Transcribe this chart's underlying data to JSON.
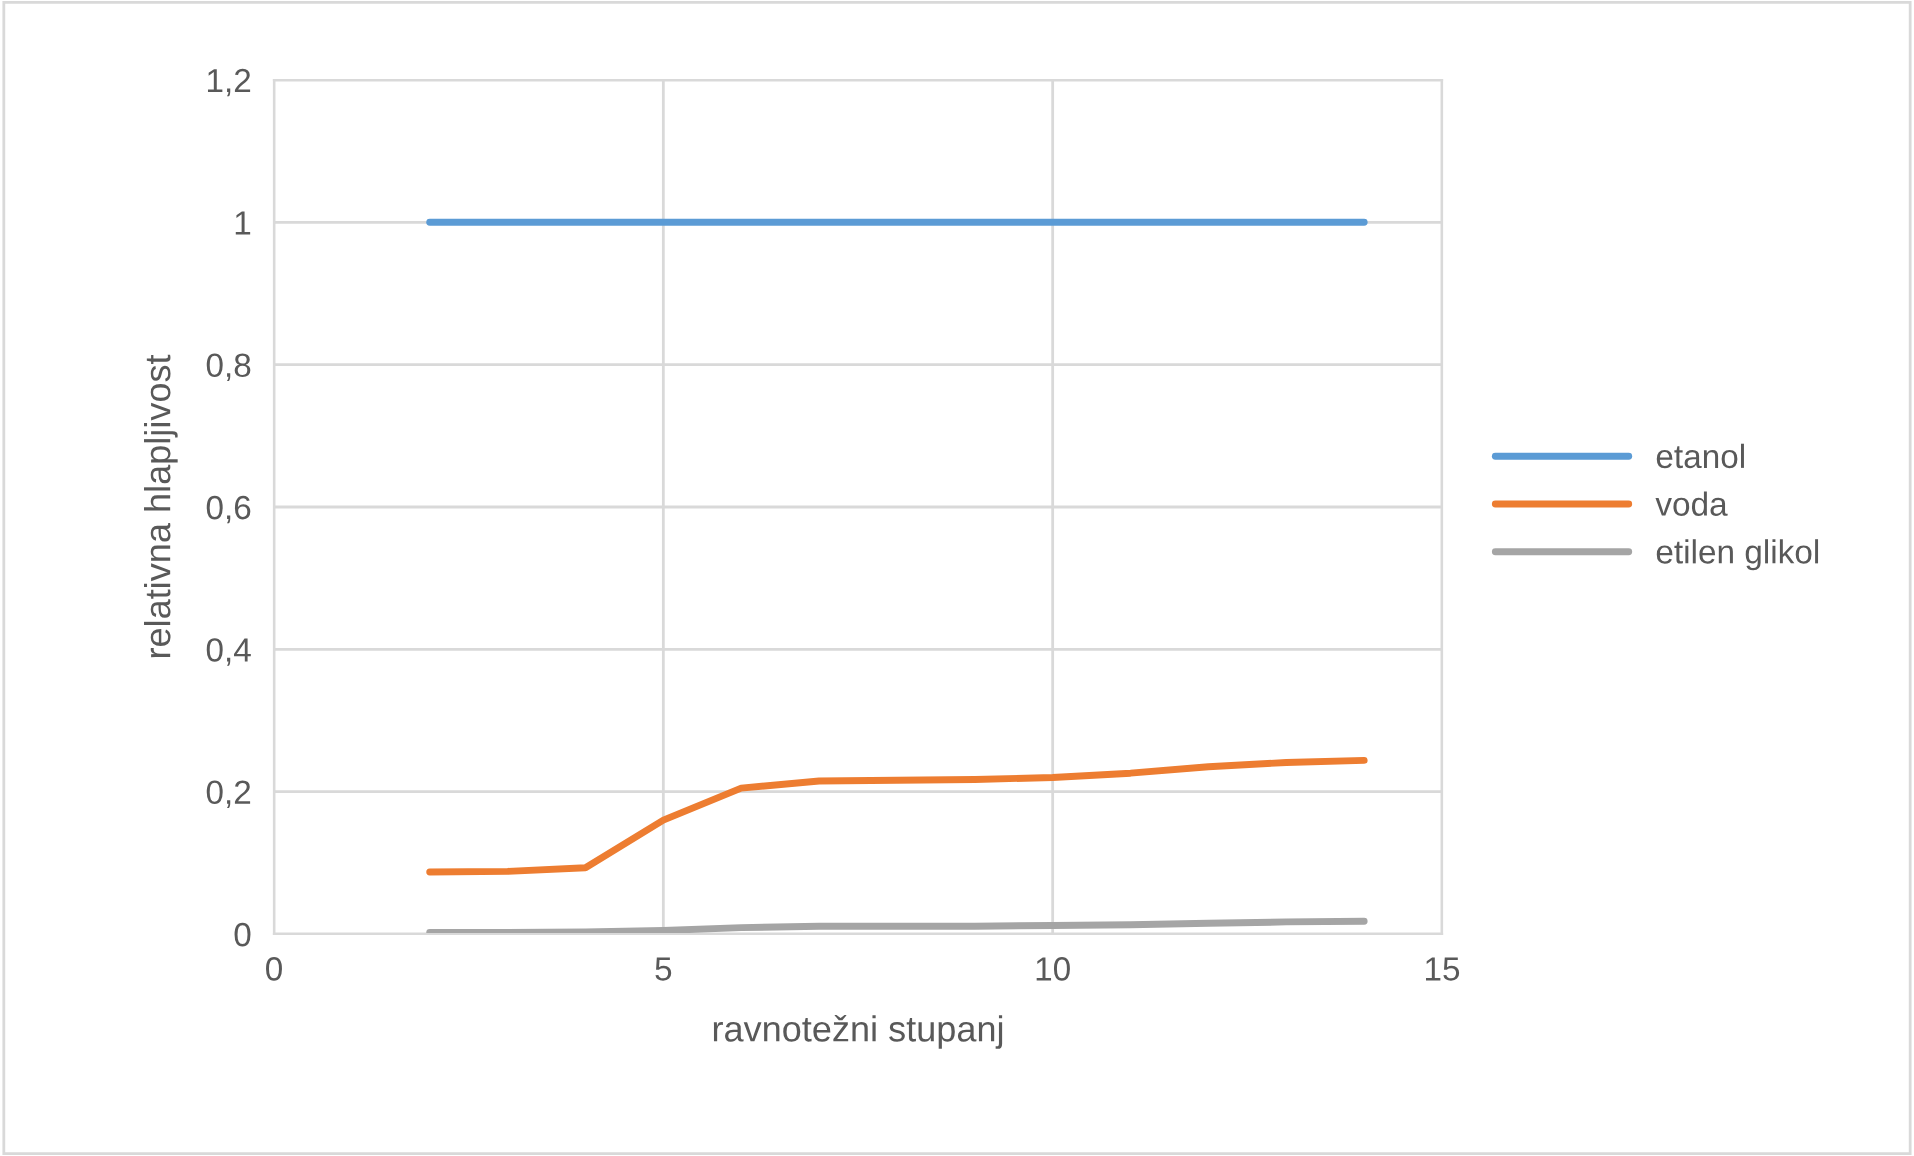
{
  "chart_data": {
    "type": "line",
    "xlabel": "ravnotežni stupanj",
    "ylabel": "relativna hlapljivost",
    "x": [
      2,
      3,
      4,
      5,
      6,
      7,
      8,
      9,
      10,
      11,
      12,
      13,
      14
    ],
    "series": [
      {
        "name": "etanol",
        "color": "#5b9bd5",
        "values": [
          1,
          1,
          1,
          1,
          1,
          1,
          1,
          1,
          1,
          1,
          1,
          1,
          1
        ]
      },
      {
        "name": "voda",
        "color": "#ed7d31",
        "values": [
          0.087,
          0.088,
          0.093,
          0.16,
          0.205,
          0.215,
          0.216,
          0.217,
          0.22,
          0.226,
          0.235,
          0.241,
          0.244
        ]
      },
      {
        "name": "etilen glikol",
        "color": "#a5a5a5",
        "values": [
          0.002,
          0.002,
          0.003,
          0.005,
          0.009,
          0.011,
          0.011,
          0.011,
          0.012,
          0.013,
          0.015,
          0.017,
          0.018
        ]
      }
    ],
    "xlim": [
      0,
      15
    ],
    "xticks": [
      0,
      5,
      10,
      15
    ],
    "ylim": [
      0,
      1.2
    ],
    "yticks": [
      {
        "value": 0,
        "label": "0"
      },
      {
        "value": 0.2,
        "label": "0,2"
      },
      {
        "value": 0.4,
        "label": "0,4"
      },
      {
        "value": 0.6,
        "label": "0,6"
      },
      {
        "value": 0.8,
        "label": "0,8"
      },
      {
        "value": 1,
        "label": "1"
      },
      {
        "value": 1.2,
        "label": "1,2"
      }
    ],
    "grid": true,
    "legend": "right",
    "marker": "none",
    "line_style": "solid"
  }
}
